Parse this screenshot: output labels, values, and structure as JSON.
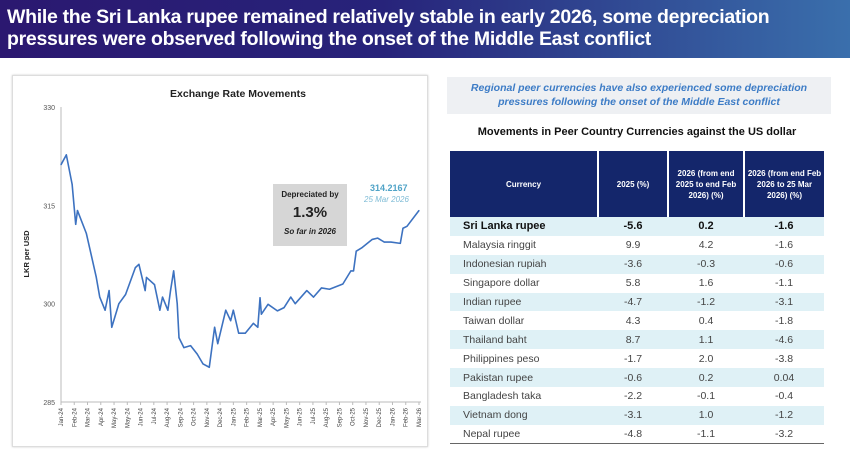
{
  "header": {
    "title_line1": "While the Sri Lanka rupee remained relatively stable in early 2026, some depreciation",
    "title_line2": "pressures were observed following the onset of the Middle East conflict"
  },
  "chart_data": {
    "type": "line",
    "title": "Exchange Rate Movements",
    "ylabel": "LKR per USD",
    "xlabel": "",
    "ylim": [
      285,
      330
    ],
    "yticks": [
      "330",
      "315",
      "300",
      "285"
    ],
    "xticks": [
      "Jan-24",
      "Feb-24",
      "Mar-24",
      "Apr-24",
      "May-24",
      "May-24",
      "Jun-24",
      "Jul-24",
      "Aug-24",
      "Sep-24",
      "Oct-24",
      "Nov-24",
      "Dec-24",
      "Jan-25",
      "Feb-25",
      "Mar-25",
      "Apr-25",
      "May-25",
      "Jun-25",
      "Jul-25",
      "Aug-25",
      "Sep-25",
      "Oct-25",
      "Nov-25",
      "Dec-25",
      "Jan-26",
      "Feb-26",
      "Mar-26"
    ],
    "grid": false,
    "color": "#3d72c0",
    "series": [
      {
        "points": [
          [
            "2024-01-01",
            321.2
          ],
          [
            "2024-01-13",
            322.7
          ],
          [
            "2024-01-26",
            318.2
          ],
          [
            "2024-02-04",
            312.1
          ],
          [
            "2024-02-08",
            314.2
          ],
          [
            "2024-02-28",
            310.7
          ],
          [
            "2024-03-20",
            304.1
          ],
          [
            "2024-03-28",
            301
          ],
          [
            "2024-04-10",
            299
          ],
          [
            "2024-04-19",
            302
          ],
          [
            "2024-04-25",
            296.4
          ],
          [
            "2024-05-11",
            300
          ],
          [
            "2024-05-26",
            301.4
          ],
          [
            "2024-06-18",
            305.5
          ],
          [
            "2024-06-26",
            306
          ],
          [
            "2024-07-10",
            302
          ],
          [
            "2024-07-13",
            304
          ],
          [
            "2024-08-01",
            302.9
          ],
          [
            "2024-08-13",
            299
          ],
          [
            "2024-08-19",
            301
          ],
          [
            "2024-09-01",
            299
          ],
          [
            "2024-09-07",
            302
          ],
          [
            "2024-09-14",
            305
          ],
          [
            "2024-09-22",
            300
          ],
          [
            "2024-09-26",
            294.8
          ],
          [
            "2024-10-07",
            293.3
          ],
          [
            "2024-10-22",
            293.6
          ],
          [
            "2024-11-07",
            292.3
          ],
          [
            "2024-11-20",
            290.8
          ],
          [
            "2024-12-04",
            290.3
          ],
          [
            "2024-12-16",
            296.4
          ],
          [
            "2024-12-23",
            293.9
          ],
          [
            "2025-01-11",
            299
          ],
          [
            "2025-01-22",
            297.4
          ],
          [
            "2025-01-28",
            299
          ],
          [
            "2025-02-10",
            295.5
          ],
          [
            "2025-02-25",
            295.5
          ],
          [
            "2025-03-13",
            297
          ],
          [
            "2025-03-23",
            296.4
          ],
          [
            "2025-03-28",
            300.9
          ],
          [
            "2025-04-01",
            298.4
          ],
          [
            "2025-04-16",
            299.9
          ],
          [
            "2025-05-07",
            298.9
          ],
          [
            "2025-05-22",
            299.4
          ],
          [
            "2025-06-07",
            301
          ],
          [
            "2025-06-17",
            300
          ],
          [
            "2025-07-13",
            302
          ],
          [
            "2025-07-28",
            301
          ],
          [
            "2025-08-16",
            302.4
          ],
          [
            "2025-09-04",
            302.2
          ],
          [
            "2025-10-04",
            303
          ],
          [
            "2025-10-22",
            305
          ],
          [
            "2025-10-28",
            305
          ],
          [
            "2025-11-04",
            308
          ],
          [
            "2025-11-16",
            308.5
          ],
          [
            "2025-12-10",
            309.8
          ],
          [
            "2025-12-22",
            310
          ],
          [
            "2026-01-07",
            309.4
          ],
          [
            "2026-01-22",
            309.4
          ],
          [
            "2026-02-13",
            309.2
          ],
          [
            "2026-02-19",
            311.5
          ],
          [
            "2026-02-28",
            311.8
          ],
          [
            "2026-03-25",
            314.2167
          ]
        ]
      }
    ],
    "annotation": {
      "line1": "Depreciated by",
      "value": "1.3%",
      "line3": "So far in 2026"
    },
    "last_label": {
      "value": "314.2167",
      "date": "25 Mar 2026"
    }
  },
  "panel": {
    "subtitle_line1": "Regional peer currencies have also experienced some depreciation",
    "subtitle_line2": "pressures following the onset of the Middle East conflict",
    "table_title": "Movements in Peer Country Currencies against the US dollar",
    "columns": [
      "Currency",
      "2025 (%)",
      "2026 (from end 2025 to end Feb 2026) (%)",
      "2026 (from end Feb 2026 to 25 Mar 2026) (%)"
    ],
    "rows": [
      [
        "Sri Lanka rupee",
        "-5.6",
        "0.2",
        "-1.6"
      ],
      [
        "Malaysia ringgit",
        "9.9",
        "4.2",
        "-1.6"
      ],
      [
        "Indonesian rupiah",
        "-3.6",
        "-0.3",
        "-0.6"
      ],
      [
        "Singapore dollar",
        "5.8",
        "1.6",
        "-1.1"
      ],
      [
        "Indian rupee",
        "-4.7",
        "-1.2",
        "-3.1"
      ],
      [
        "Taiwan dollar",
        "4.3",
        "0.4",
        "-1.8"
      ],
      [
        "Thailand baht",
        "8.7",
        "1.1",
        "-4.6"
      ],
      [
        "Philippines peso",
        "-1.7",
        "2.0",
        "-3.8"
      ],
      [
        "Pakistan rupee",
        "-0.6",
        "0.2",
        "0.04"
      ],
      [
        "Bangladesh taka",
        "-2.2",
        "-0.1",
        "-0.4"
      ],
      [
        "Vietnam dong",
        "-3.1",
        "1.0",
        "-1.2"
      ],
      [
        "Nepal rupee",
        "-4.8",
        "-1.1",
        "-3.2"
      ]
    ]
  }
}
